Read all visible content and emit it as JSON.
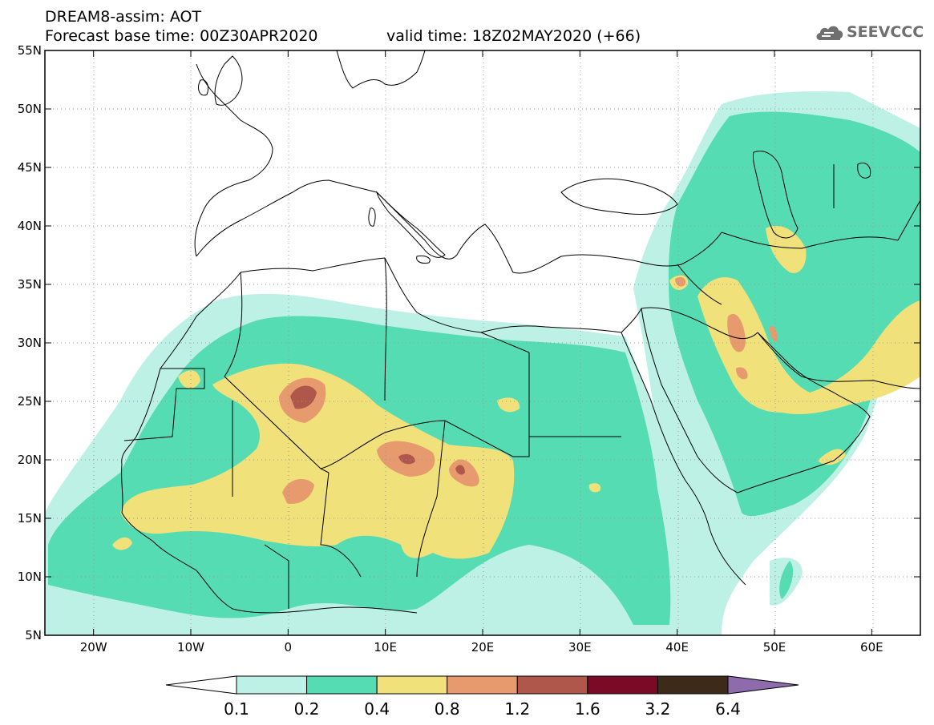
{
  "header": {
    "line1": "DREAM8-assim: AOT",
    "line2": "Forecast base time: 00Z30APR2020",
    "valid": "valid time: 18Z02MAY2020 (+66)"
  },
  "logo": {
    "text": "SEEVCCC",
    "icon": "cloud-icon"
  },
  "axes": {
    "lon_min": -25,
    "lon_max": 65,
    "lat_min": 5,
    "lat_max": 55,
    "x_ticks": [
      {
        "lon": -20,
        "label": "20W"
      },
      {
        "lon": -10,
        "label": "10W"
      },
      {
        "lon": 0,
        "label": "0"
      },
      {
        "lon": 10,
        "label": "10E"
      },
      {
        "lon": 20,
        "label": "20E"
      },
      {
        "lon": 30,
        "label": "30E"
      },
      {
        "lon": 40,
        "label": "40E"
      },
      {
        "lon": 50,
        "label": "50E"
      },
      {
        "lon": 60,
        "label": "60E"
      }
    ],
    "y_ticks": [
      {
        "lat": 55,
        "label": "55N"
      },
      {
        "lat": 50,
        "label": "50N"
      },
      {
        "lat": 45,
        "label": "45N"
      },
      {
        "lat": 40,
        "label": "40N"
      },
      {
        "lat": 35,
        "label": "35N"
      },
      {
        "lat": 30,
        "label": "30N"
      },
      {
        "lat": 25,
        "label": "25N"
      },
      {
        "lat": 20,
        "label": "20N"
      },
      {
        "lat": 15,
        "label": "15N"
      },
      {
        "lat": 10,
        "label": "10N"
      },
      {
        "lat": 5,
        "label": "5N"
      }
    ]
  },
  "colorbar": {
    "levels": [
      "0.1",
      "0.2",
      "0.4",
      "0.8",
      "1.2",
      "1.6",
      "3.2",
      "6.4"
    ],
    "colors": [
      "#ffffff",
      "#bdf1e6",
      "#55dcb2",
      "#f0e17a",
      "#e69a6e",
      "#b0574c",
      "#7a0a26",
      "#3e2a18",
      "#8e6bad"
    ]
  }
}
